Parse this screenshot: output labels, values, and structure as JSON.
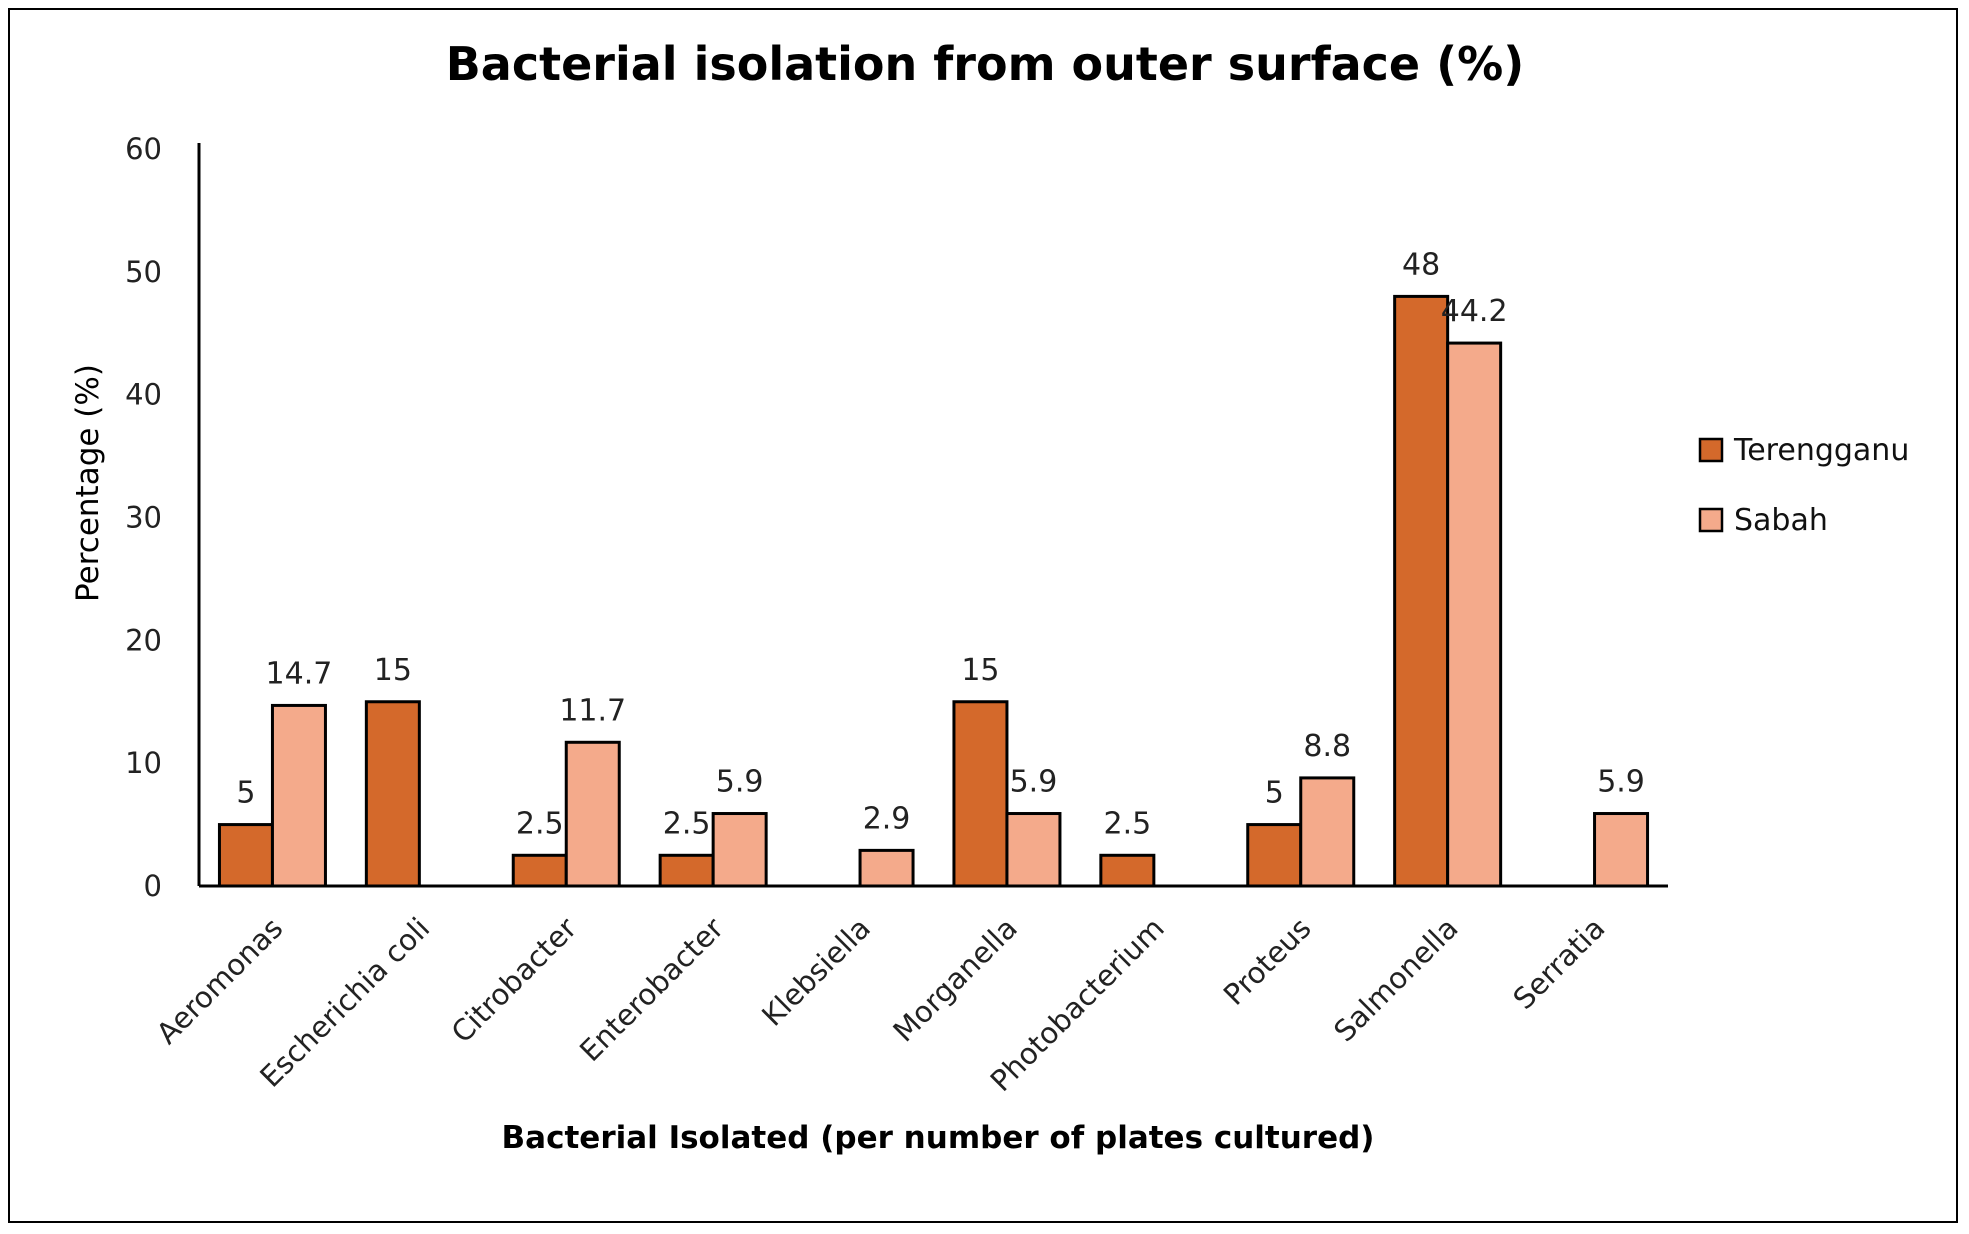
{
  "chart_data": {
    "type": "bar",
    "title": "Bacterial isolation from outer surface (%)",
    "xlabel": "Bacterial Isolated (per number of plates cultured)",
    "ylabel": "Percentage (%)",
    "ylim": [
      0,
      60
    ],
    "yticks": [
      0,
      10,
      20,
      30,
      40,
      50,
      60
    ],
    "grid": false,
    "legend_position": "right",
    "categories": [
      "Aeromonas",
      "Escherichia coli",
      "Citrobacter",
      "Enterobacter",
      "Klebsiella",
      "Morganella",
      "Photobacterium",
      "Proteus",
      "Salmonella",
      "Serratia"
    ],
    "series": [
      {
        "name": "Terengganu",
        "color": "#d4692b",
        "values": [
          5,
          15,
          2.5,
          2.5,
          null,
          15,
          2.5,
          5,
          48,
          null
        ],
        "labels": [
          "5",
          "15",
          "2.5",
          "2.5",
          "",
          "15",
          "2.5",
          "5",
          "48",
          ""
        ]
      },
      {
        "name": "Sabah",
        "color": "#f4aa8b",
        "values": [
          14.7,
          null,
          11.7,
          5.9,
          2.9,
          5.9,
          null,
          8.8,
          44.2,
          5.9
        ],
        "labels": [
          "14.7",
          "",
          "11.7",
          "5.9",
          "2.9",
          "5.9",
          "",
          "8.8",
          "44.2",
          "5.9"
        ]
      }
    ]
  }
}
